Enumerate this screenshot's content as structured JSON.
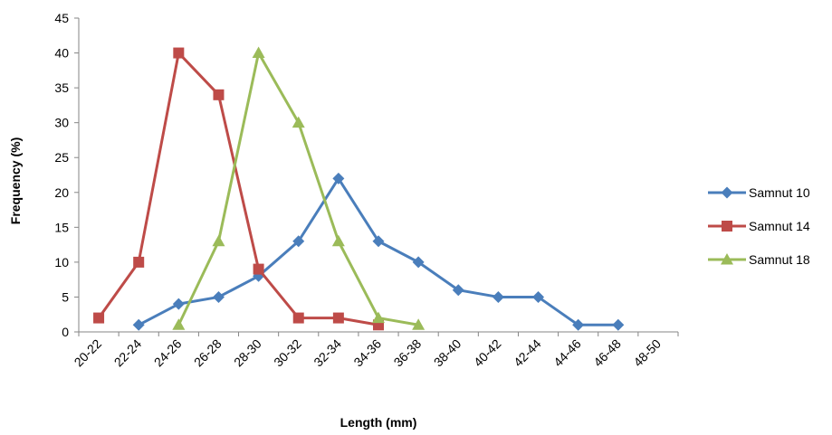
{
  "chart_data": {
    "type": "line",
    "title": "",
    "xlabel": "Length (mm)",
    "ylabel": "Frequency (%)",
    "categories": [
      "20-22",
      "22-24",
      "24-26",
      "26-28",
      "28-30",
      "30-32",
      "32-34",
      "34-36",
      "36-38",
      "38-40",
      "40-42",
      "42-44",
      "44-46",
      "46-48",
      "48-50"
    ],
    "ylim": [
      0,
      45
    ],
    "yticks": [
      "0",
      "5",
      "10",
      "15",
      "20",
      "25",
      "30",
      "35",
      "40",
      "45"
    ],
    "grid": false,
    "legend_position": "right",
    "series": [
      {
        "name": "Samnut 10",
        "color": "#4a7ebb",
        "marker": "diamond",
        "values": [
          null,
          1,
          4,
          5,
          8,
          13,
          22,
          13,
          10,
          6,
          5,
          5,
          1,
          1,
          null
        ]
      },
      {
        "name": "Samnut 14",
        "color": "#be4b48",
        "marker": "square",
        "values": [
          2,
          10,
          40,
          34,
          9,
          2,
          2,
          1,
          null,
          null,
          null,
          null,
          null,
          null,
          null
        ]
      },
      {
        "name": "Samnut 18",
        "color": "#9bbb59",
        "marker": "triangle",
        "values": [
          null,
          null,
          1,
          13,
          40,
          30,
          13,
          2,
          1,
          null,
          null,
          null,
          null,
          null,
          null
        ]
      }
    ]
  }
}
